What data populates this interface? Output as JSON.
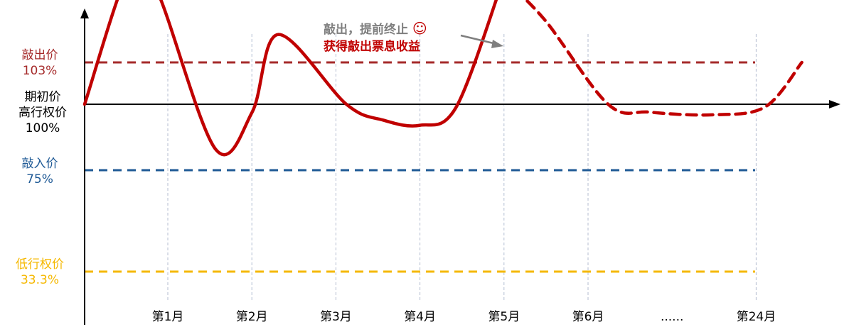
{
  "chart_data": {
    "type": "line",
    "title": "",
    "xlabel": "",
    "ylabel": "",
    "categories": [
      "第1月",
      "第2月",
      "第3月",
      "第4月",
      "第5月",
      "第6月",
      "......",
      "第24月"
    ],
    "reference_lines": [
      {
        "id": "knockout",
        "label": "敲出价",
        "value_label": "103%",
        "value": 103,
        "color": "#a52a2a",
        "style": "dashed"
      },
      {
        "id": "initial",
        "label": "期初价",
        "label2": "高行权价",
        "value_label": "100%",
        "value": 100,
        "color": "#000000",
        "style": "solid"
      },
      {
        "id": "knockin",
        "label": "敲入价",
        "value_label": "75%",
        "value": 75,
        "color": "#1f5a96",
        "style": "dashed"
      },
      {
        "id": "low_strike",
        "label": "低行权价",
        "value_label": "33.3%",
        "value": 33.3,
        "color": "#f5b800",
        "style": "dashed"
      }
    ],
    "series": [
      {
        "style": "solid",
        "color": "#c00000",
        "points": [
          [
            0,
            100
          ],
          [
            0.45,
            110
          ],
          [
            0.7,
            108
          ],
          [
            1.25,
            83
          ],
          [
            1.6,
            97
          ],
          [
            1.85,
            105
          ],
          [
            2.5,
            100
          ],
          [
            2.85,
            94
          ],
          [
            3.2,
            92
          ],
          [
            3.55,
            99
          ],
          [
            4.0,
            109
          ]
        ]
      },
      {
        "style": "dashed",
        "color": "#c00000",
        "points": [
          [
            4.0,
            109
          ],
          [
            4.4,
            106
          ],
          [
            5.0,
            100
          ],
          [
            5.4,
            97
          ],
          [
            6.0,
            96
          ],
          [
            6.5,
            99
          ],
          [
            6.85,
            103
          ]
        ]
      }
    ],
    "grid": {
      "vertical": true,
      "horizontal": false
    }
  },
  "annotation": {
    "line1": "敲出，提前终止",
    "emoji": "☺",
    "line2": "获得敲出票息收益",
    "color1": "#7f7f7f",
    "color2": "#c00000"
  }
}
